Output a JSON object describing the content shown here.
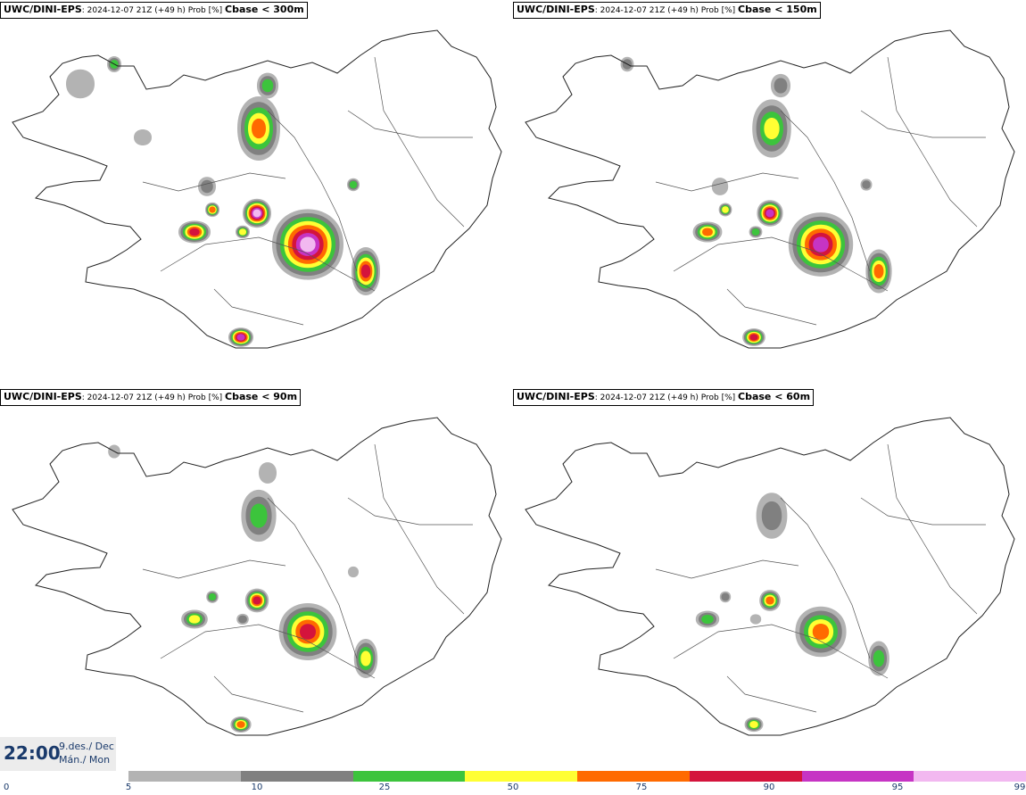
{
  "panels": [
    {
      "model": "UWC/DINI-EPS",
      "info": ": 2024-12-07 21Z (+49 h) Prob [%] ",
      "cbase": "Cbase < 300m",
      "level": 4
    },
    {
      "model": "UWC/DINI-EPS",
      "info": ": 2024-12-07 21Z (+49 h) Prob [%] ",
      "cbase": "Cbase < 150m",
      "level": 3
    },
    {
      "model": "UWC/DINI-EPS",
      "info": ": 2024-12-07 21Z (+49 h) Prob [%] ",
      "cbase": "Cbase < 90m",
      "level": 2
    },
    {
      "model": "UWC/DINI-EPS",
      "info": ": 2024-12-07 21Z (+49 h) Prob [%] ",
      "cbase": "Cbase < 60m",
      "level": 1
    }
  ],
  "time": {
    "clock": "22:00",
    "date": "9.des./ Dec",
    "day": "Mán./ Mon"
  },
  "legend": {
    "colors": [
      "#b3b3b3",
      "#808080",
      "#3cc43c",
      "#ffff33",
      "#ff6a00",
      "#d4143c",
      "#c634c4",
      "#f2b8f0"
    ],
    "ticks": [
      "0",
      "5",
      "10",
      "25",
      "50",
      "75",
      "90",
      "95",
      "99"
    ]
  }
}
